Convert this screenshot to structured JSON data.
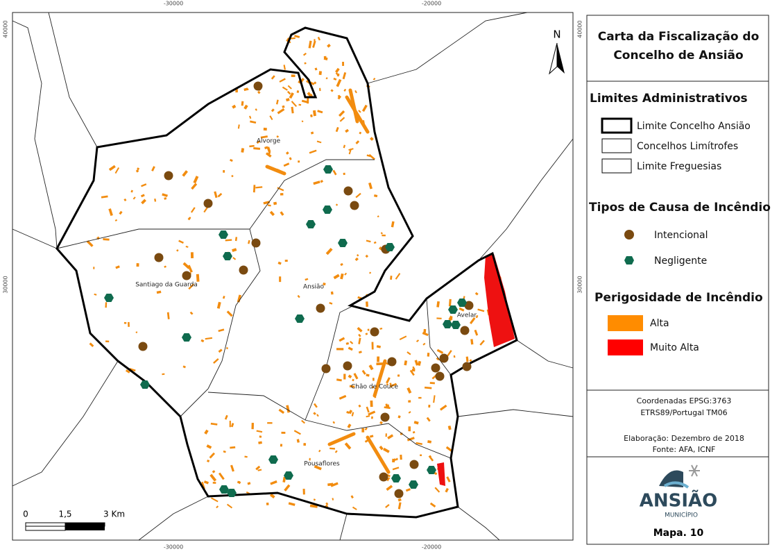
{
  "map": {
    "coords": {
      "x_top": [
        "-30000",
        "-20000"
      ],
      "x_bottom": [
        "-30000",
        "-20000"
      ],
      "y_left": [
        "40000",
        "30000"
      ],
      "y_right": [
        "40000",
        "30000"
      ]
    },
    "places": [
      "Alvorge",
      "Santiago da Guarda",
      "Ansião",
      "Avelar",
      "Chão de Couce",
      "Pousaflores"
    ],
    "north": "N",
    "scale": [
      "0",
      "1,5",
      "3 Km"
    ]
  },
  "legend": {
    "title": "Carta da Fiscalização do Concelho de Ansião",
    "admin": {
      "heading": "Limites Administrativos",
      "items": [
        "Limite Concelho Ansião",
        "Concelhos Limítrofes",
        "Limite Freguesias"
      ]
    },
    "causes": {
      "heading": "Tipos de Causa de Incêndio",
      "items": [
        "Intencional",
        "Negligente"
      ]
    },
    "hazard": {
      "heading": "Perigosidade de Incêndio",
      "items": [
        "Alta",
        "Muito Alta"
      ]
    },
    "crs": [
      "Coordenadas EPSG:3763",
      "ETRS89/Portugal TM06"
    ],
    "credits": [
      "Elaboração: Dezembro de 2018",
      "Fonte: AFA, ICNF"
    ],
    "logo": [
      "ANSIÃO",
      "MUNICÍPIO"
    ],
    "map_number": "Mapa. 10"
  }
}
